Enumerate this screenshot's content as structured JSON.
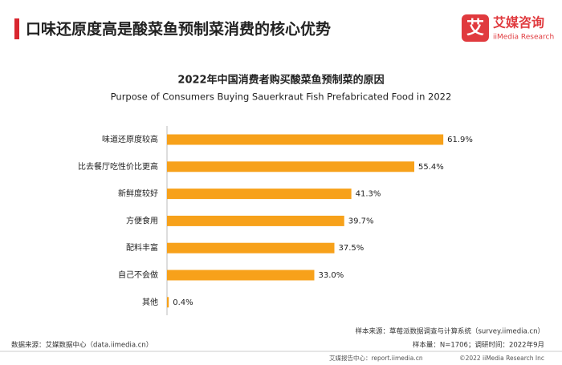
{
  "header": {
    "title": "口味还原度高是酸菜鱼预制菜消费的核心优势",
    "logo_mark": "艾",
    "logo_name": "艾媒咨询",
    "logo_sub": "iiMedia Research"
  },
  "chart_data": {
    "type": "bar",
    "orientation": "horizontal",
    "title": "2022年中国消费者购买酸菜鱼预制菜的原因",
    "subtitle": "Purpose of Consumers Buying Sauerkraut Fish Prefabricated Food  in  2022",
    "categories": [
      "味道还原度较高",
      "比去餐厅吃性价比更高",
      "新鲜度较好",
      "方便食用",
      "配料丰富",
      "自己不会做",
      "其他"
    ],
    "values": [
      61.9,
      55.4,
      41.3,
      39.7,
      37.5,
      33.0,
      0.4
    ],
    "value_labels": [
      "61.9%",
      "55.4%",
      "41.3%",
      "39.7%",
      "37.5%",
      "33.0%",
      "0.4%"
    ],
    "color": "#f7a11a"
  },
  "footer": {
    "sample_source": "样本来源：草莓派数据调查与计算系统（survey.iimedia.cn）",
    "data_source": "数据来源：艾媒数据中心（data.iimedia.cn）",
    "sample_size": "样本量：N=1706；调研时间：2022年9月",
    "report_center": "艾媒报告中心：report.iimedia.cn",
    "copyright": "©2022  iiMedia Research  Inc"
  }
}
